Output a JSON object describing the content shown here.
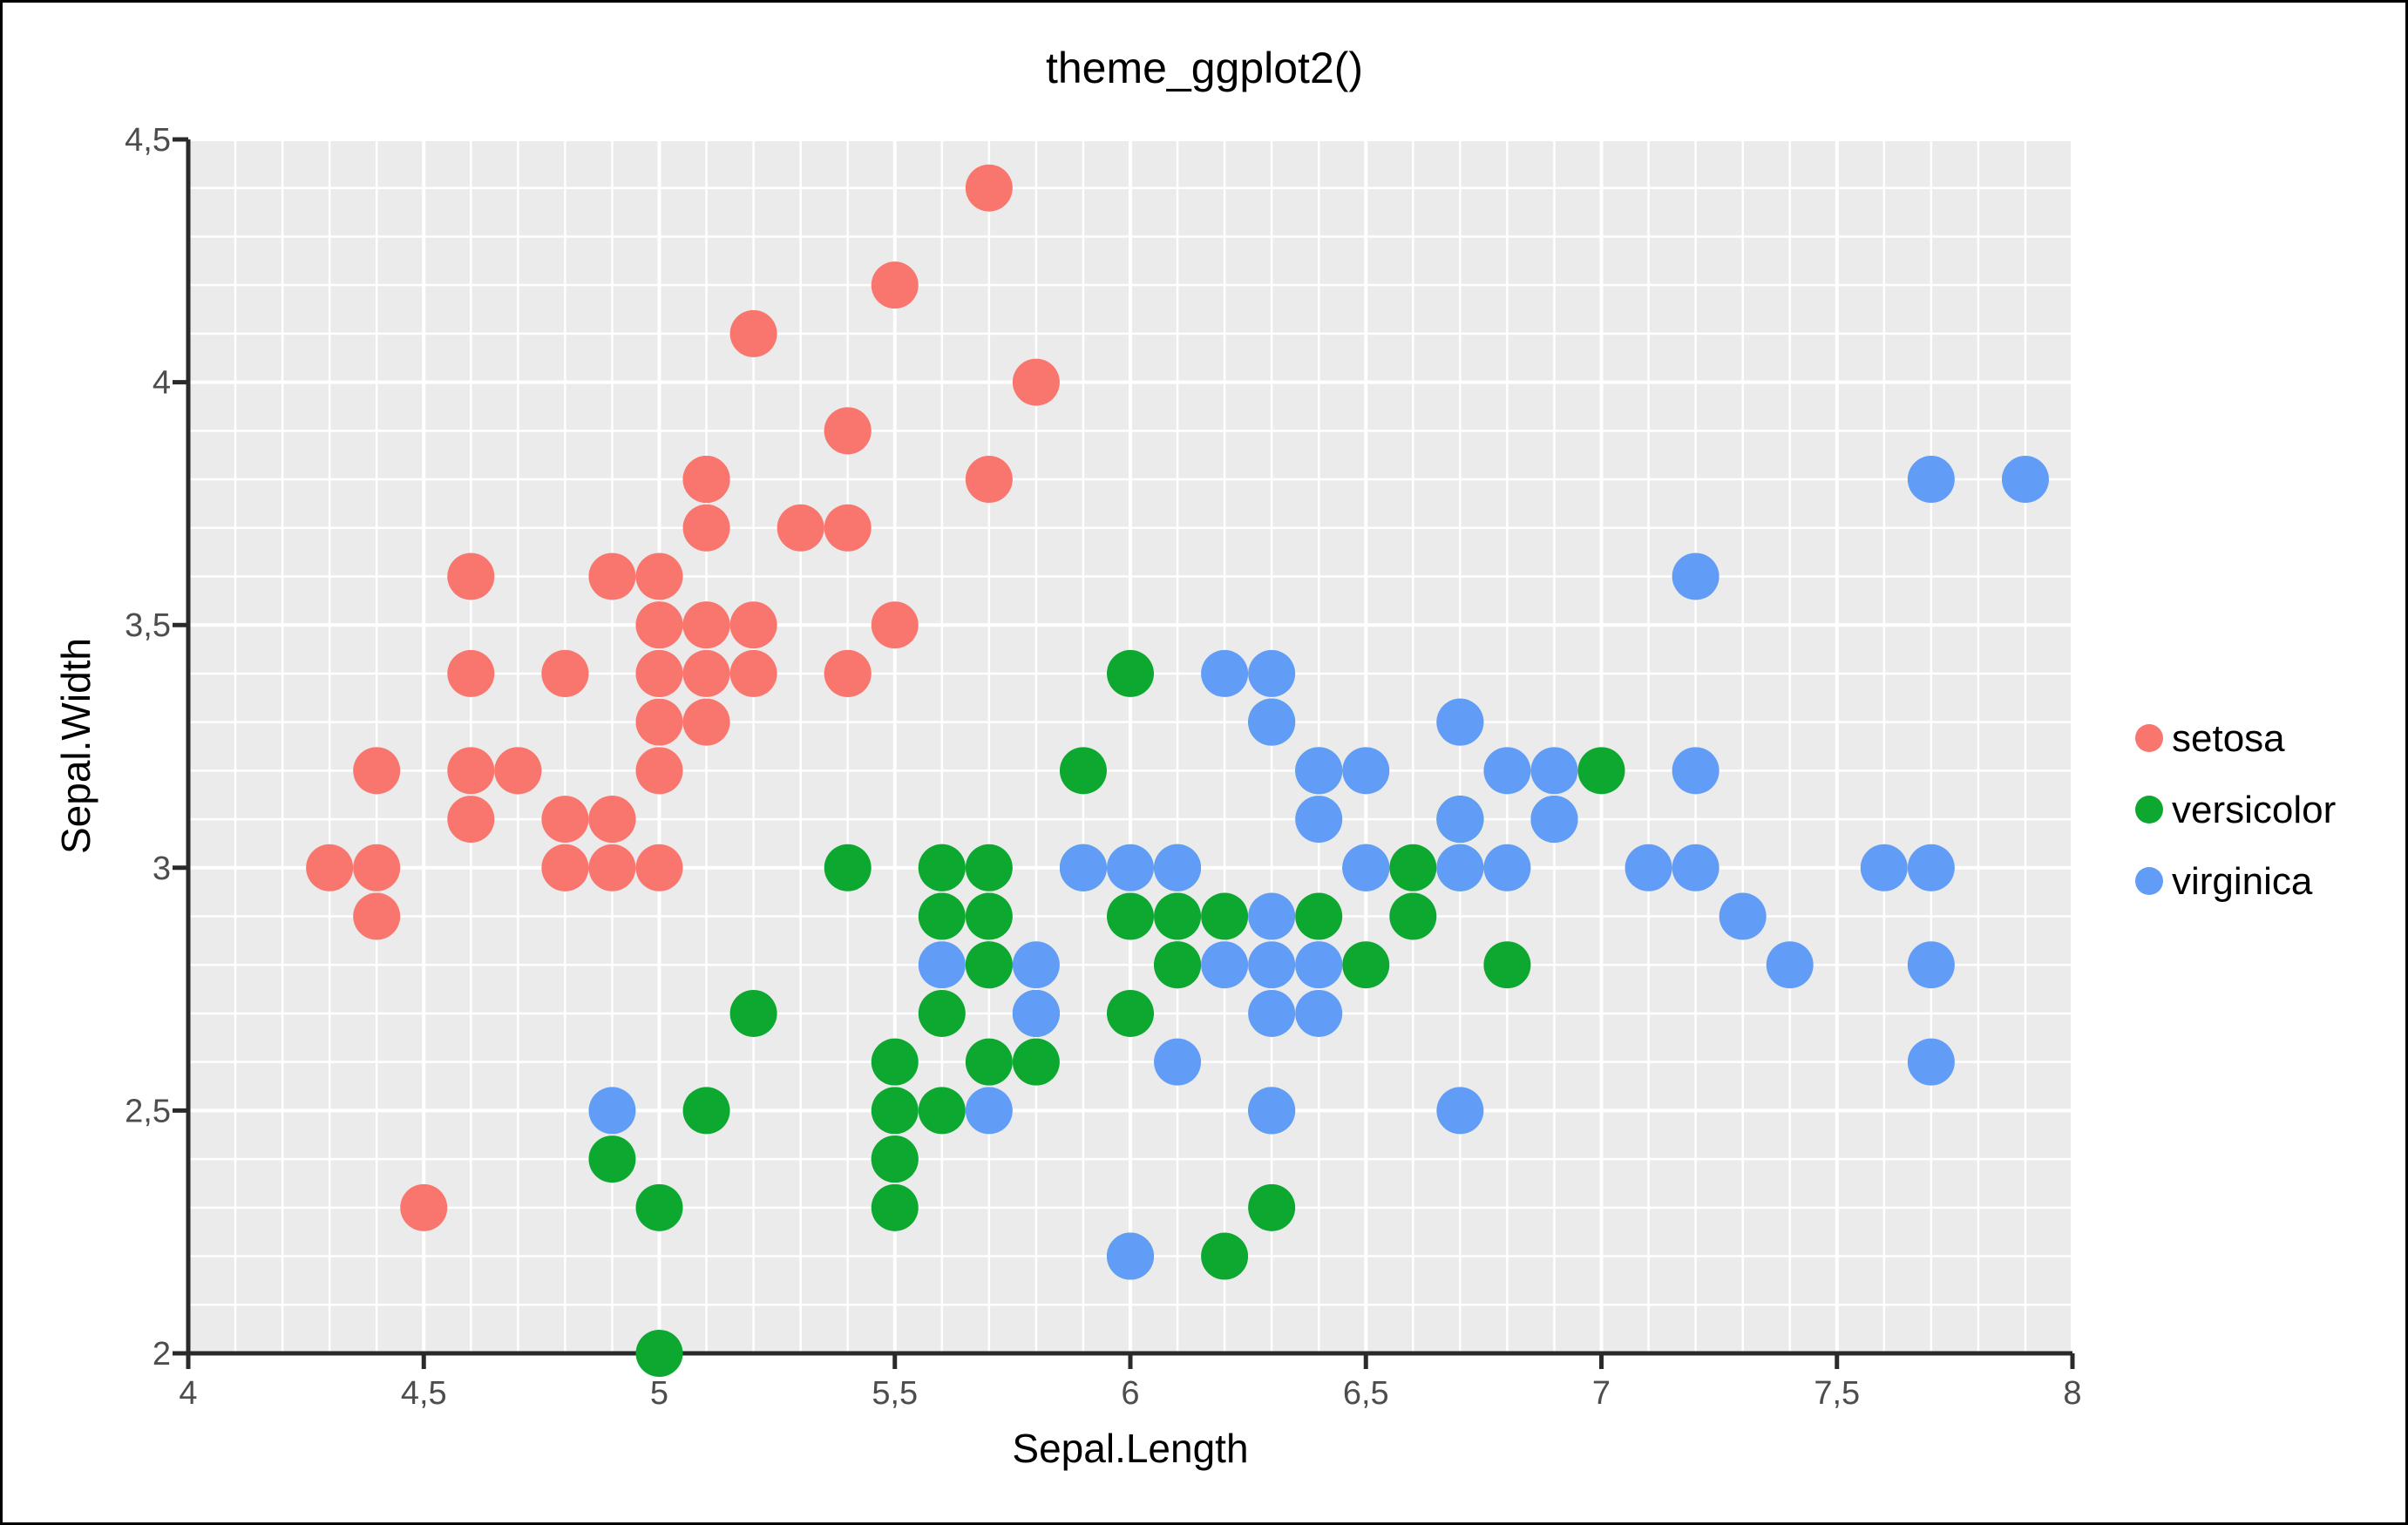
{
  "figure": {
    "title": "theme_ggplot2()",
    "background_color": "#FFFFFF",
    "border_color": "#000000"
  },
  "chart_data": {
    "type": "scatter",
    "title": "theme_ggplot2()",
    "xlabel": "Sepal.Length",
    "ylabel": "Sepal.Width",
    "xlim": [
      4,
      8
    ],
    "ylim": [
      2,
      4.5
    ],
    "x_ticks": [
      4,
      4.5,
      5,
      5.5,
      6,
      6.5,
      7,
      7.5,
      8
    ],
    "x_tick_labels": [
      "4",
      "4,5",
      "5",
      "5,5",
      "6",
      "6,5",
      "7",
      "7,5",
      "8"
    ],
    "y_ticks": [
      2,
      2.5,
      3,
      3.5,
      4,
      4.5
    ],
    "y_tick_labels": [
      "2",
      "2,5",
      "3",
      "3,5",
      "4",
      "4,5"
    ],
    "grid": {
      "on": true,
      "step": 0.1,
      "major_step": 0.5,
      "line_color": "#FFFFFF",
      "panel_background": "#EBEBEB",
      "axis_line_color": "#2A2A2A",
      "tick_label_color": "#4D4D4D"
    },
    "legend": {
      "position": "right",
      "entries": [
        {
          "label": "setosa",
          "color": "#F8766D"
        },
        {
          "label": "versicolor",
          "color": "#0CA82F"
        },
        {
          "label": "virginica",
          "color": "#619CF7"
        }
      ]
    },
    "series": [
      {
        "name": "setosa",
        "color": "#F8766D",
        "points": [
          [
            5.1,
            3.5
          ],
          [
            4.9,
            3.0
          ],
          [
            4.7,
            3.2
          ],
          [
            4.6,
            3.1
          ],
          [
            5.0,
            3.6
          ],
          [
            5.4,
            3.9
          ],
          [
            4.6,
            3.4
          ],
          [
            5.0,
            3.4
          ],
          [
            4.4,
            2.9
          ],
          [
            4.9,
            3.1
          ],
          [
            5.4,
            3.7
          ],
          [
            4.8,
            3.4
          ],
          [
            4.8,
            3.0
          ],
          [
            4.3,
            3.0
          ],
          [
            5.8,
            4.0
          ],
          [
            5.7,
            4.4
          ],
          [
            5.4,
            3.9
          ],
          [
            5.1,
            3.5
          ],
          [
            5.7,
            3.8
          ],
          [
            5.1,
            3.8
          ],
          [
            5.4,
            3.4
          ],
          [
            5.1,
            3.7
          ],
          [
            4.6,
            3.6
          ],
          [
            5.1,
            3.3
          ],
          [
            4.8,
            3.4
          ],
          [
            5.0,
            3.0
          ],
          [
            5.0,
            3.4
          ],
          [
            5.2,
            3.5
          ],
          [
            5.2,
            3.4
          ],
          [
            4.7,
            3.2
          ],
          [
            4.8,
            3.1
          ],
          [
            5.4,
            3.4
          ],
          [
            5.2,
            4.1
          ],
          [
            5.5,
            4.2
          ],
          [
            4.9,
            3.1
          ],
          [
            5.0,
            3.2
          ],
          [
            5.5,
            3.5
          ],
          [
            4.9,
            3.6
          ],
          [
            4.4,
            3.0
          ],
          [
            5.1,
            3.4
          ],
          [
            5.0,
            3.5
          ],
          [
            4.5,
            2.3
          ],
          [
            4.4,
            3.2
          ],
          [
            5.0,
            3.5
          ],
          [
            5.1,
            3.8
          ],
          [
            4.8,
            3.0
          ],
          [
            5.1,
            3.8
          ],
          [
            4.6,
            3.2
          ],
          [
            5.3,
            3.7
          ],
          [
            5.0,
            3.3
          ]
        ]
      },
      {
        "name": "versicolor",
        "color": "#0CA82F",
        "points": [
          [
            7.0,
            3.2
          ],
          [
            6.4,
            3.2
          ],
          [
            6.9,
            3.1
          ],
          [
            5.5,
            2.3
          ],
          [
            6.5,
            2.8
          ],
          [
            5.7,
            2.8
          ],
          [
            6.3,
            3.3
          ],
          [
            4.9,
            2.4
          ],
          [
            6.6,
            2.9
          ],
          [
            5.2,
            2.7
          ],
          [
            5.0,
            2.0
          ],
          [
            5.9,
            3.0
          ],
          [
            6.0,
            2.2
          ],
          [
            6.1,
            2.9
          ],
          [
            5.6,
            2.9
          ],
          [
            6.7,
            3.1
          ],
          [
            5.6,
            3.0
          ],
          [
            5.8,
            2.7
          ],
          [
            6.2,
            2.2
          ],
          [
            5.6,
            2.5
          ],
          [
            5.9,
            3.2
          ],
          [
            6.1,
            2.8
          ],
          [
            6.3,
            2.5
          ],
          [
            6.1,
            2.8
          ],
          [
            6.4,
            2.9
          ],
          [
            6.6,
            3.0
          ],
          [
            6.8,
            2.8
          ],
          [
            6.7,
            3.0
          ],
          [
            6.0,
            2.9
          ],
          [
            5.7,
            2.6
          ],
          [
            5.5,
            2.4
          ],
          [
            5.5,
            2.4
          ],
          [
            5.8,
            2.7
          ],
          [
            6.0,
            2.7
          ],
          [
            5.4,
            3.0
          ],
          [
            6.0,
            3.4
          ],
          [
            6.7,
            3.1
          ],
          [
            6.3,
            2.3
          ],
          [
            5.6,
            3.0
          ],
          [
            5.5,
            2.5
          ],
          [
            5.5,
            2.6
          ],
          [
            6.1,
            3.0
          ],
          [
            5.8,
            2.6
          ],
          [
            5.0,
            2.3
          ],
          [
            5.6,
            2.7
          ],
          [
            5.7,
            3.0
          ],
          [
            5.7,
            2.9
          ],
          [
            6.2,
            2.9
          ],
          [
            5.1,
            2.5
          ],
          [
            5.7,
            2.8
          ]
        ]
      },
      {
        "name": "virginica",
        "color": "#619CF7",
        "points": [
          [
            6.3,
            3.3
          ],
          [
            5.8,
            2.7
          ],
          [
            7.1,
            3.0
          ],
          [
            6.3,
            2.9
          ],
          [
            6.5,
            3.0
          ],
          [
            7.6,
            3.0
          ],
          [
            4.9,
            2.5
          ],
          [
            7.3,
            2.9
          ],
          [
            6.7,
            2.5
          ],
          [
            7.2,
            3.6
          ],
          [
            6.5,
            3.2
          ],
          [
            6.4,
            2.7
          ],
          [
            6.8,
            3.0
          ],
          [
            5.7,
            2.5
          ],
          [
            5.8,
            2.8
          ],
          [
            6.4,
            3.2
          ],
          [
            6.5,
            3.0
          ],
          [
            7.7,
            3.8
          ],
          [
            7.7,
            2.6
          ],
          [
            6.0,
            2.2
          ],
          [
            6.9,
            3.2
          ],
          [
            5.6,
            2.8
          ],
          [
            7.7,
            2.8
          ],
          [
            6.3,
            2.7
          ],
          [
            6.7,
            3.3
          ],
          [
            7.2,
            3.2
          ],
          [
            6.2,
            2.8
          ],
          [
            6.1,
            3.0
          ],
          [
            6.4,
            2.8
          ],
          [
            7.2,
            3.0
          ],
          [
            7.4,
            2.8
          ],
          [
            7.9,
            3.8
          ],
          [
            6.4,
            2.8
          ],
          [
            6.3,
            2.8
          ],
          [
            6.1,
            2.6
          ],
          [
            7.7,
            3.0
          ],
          [
            6.3,
            3.4
          ],
          [
            6.4,
            3.1
          ],
          [
            6.0,
            3.0
          ],
          [
            6.9,
            3.1
          ],
          [
            6.7,
            3.1
          ],
          [
            6.9,
            3.1
          ],
          [
            5.8,
            2.7
          ],
          [
            6.8,
            3.2
          ],
          [
            6.7,
            3.3
          ],
          [
            6.7,
            3.0
          ],
          [
            6.3,
            2.5
          ],
          [
            6.5,
            3.0
          ],
          [
            6.2,
            3.4
          ],
          [
            5.9,
            3.0
          ]
        ]
      }
    ]
  }
}
